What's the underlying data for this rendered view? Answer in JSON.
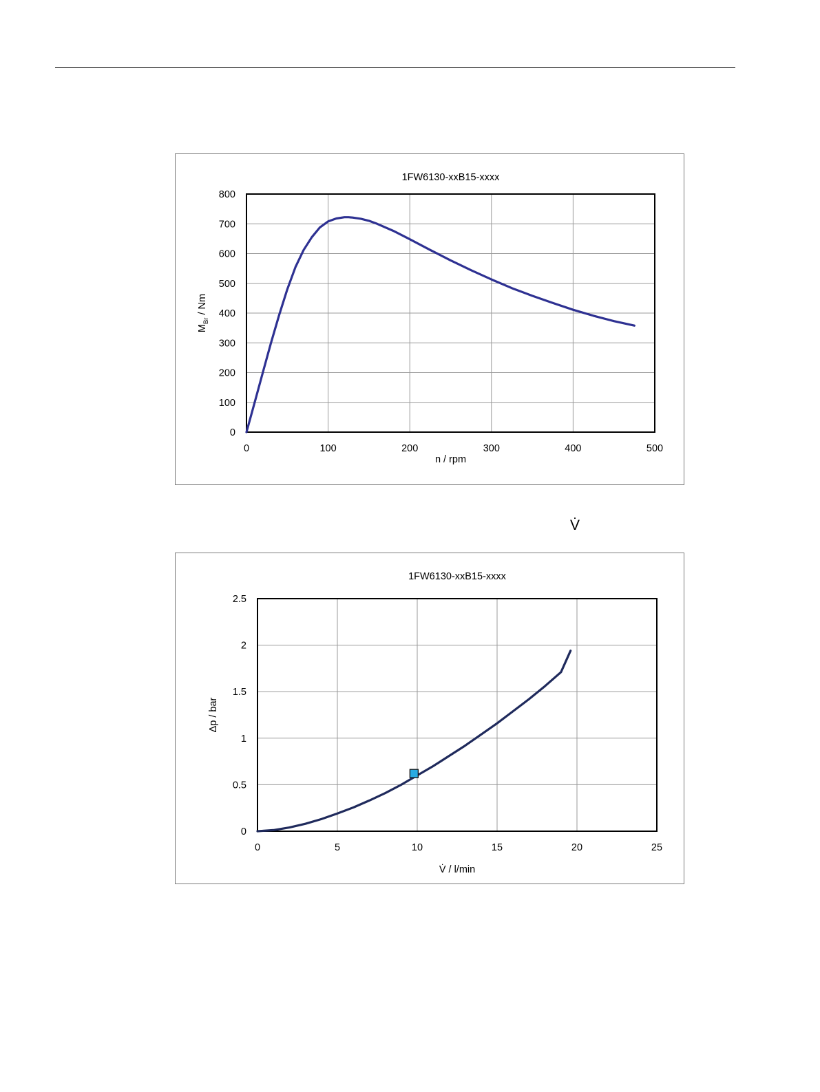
{
  "header_rule": true,
  "flow_symbol": "V̇",
  "chart_data": [
    {
      "type": "line",
      "title": "1FW6130-xxB15-xxxx",
      "xlabel": "n / rpm",
      "ylabel_main": "M",
      "ylabel_sub": "Br",
      "ylabel_rest": " / Nm",
      "xlim": [
        0,
        500
      ],
      "ylim": [
        0,
        800
      ],
      "xticks": [
        "0",
        "100",
        "200",
        "300",
        "400",
        "500"
      ],
      "yticks": [
        "0",
        "100",
        "200",
        "300",
        "400",
        "500",
        "600",
        "700",
        "800"
      ],
      "grid": true,
      "line_color": "#2e3192",
      "series": [
        {
          "x": [
            0,
            10,
            20,
            30,
            40,
            50,
            60,
            70,
            80,
            90,
            100,
            110,
            120,
            125,
            130,
            140,
            150,
            160,
            180,
            200,
            225,
            250,
            275,
            300,
            325,
            350,
            375,
            400,
            425,
            450,
            475
          ],
          "y": [
            0,
            100,
            200,
            300,
            393,
            480,
            555,
            612,
            655,
            688,
            708,
            718,
            722,
            722,
            721,
            717,
            710,
            700,
            676,
            648,
            612,
            577,
            544,
            513,
            484,
            458,
            434,
            411,
            391,
            373,
            358
          ]
        }
      ]
    },
    {
      "type": "line",
      "title": "1FW6130-xxB15-xxxx",
      "xlabel": "V̇ / l/min",
      "ylabel": "Δp / bar",
      "xlim": [
        0,
        25
      ],
      "ylim": [
        0,
        2.5
      ],
      "xticks": [
        "0",
        "5",
        "10",
        "15",
        "20",
        "25"
      ],
      "yticks": [
        "0",
        "0.5",
        "1",
        "1.5",
        "2",
        "2.5"
      ],
      "grid": true,
      "line_color": "#1f2a5c",
      "marker_color": "#29abe2",
      "series": [
        {
          "x": [
            0,
            1,
            2,
            3,
            4,
            5,
            6,
            7,
            8,
            9,
            10,
            11,
            12,
            13,
            14,
            15,
            16,
            17,
            18,
            19,
            19.6
          ],
          "y": [
            0,
            0.012,
            0.04,
            0.08,
            0.13,
            0.19,
            0.255,
            0.33,
            0.41,
            0.5,
            0.6,
            0.7,
            0.81,
            0.92,
            1.04,
            1.16,
            1.29,
            1.42,
            1.56,
            1.71,
            1.94
          ]
        }
      ],
      "marker": {
        "x": 9.8,
        "y": 0.62
      }
    }
  ]
}
